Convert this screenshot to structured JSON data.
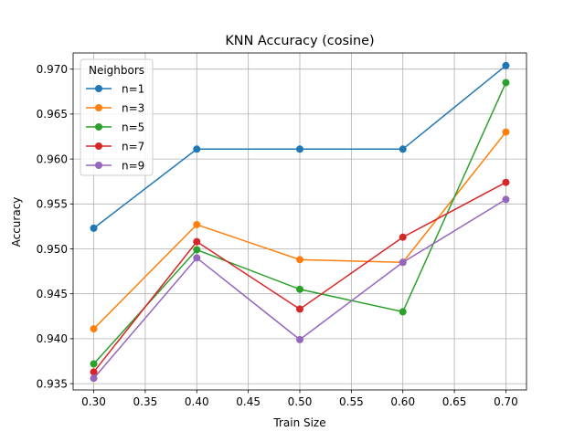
{
  "chart_data": {
    "type": "line",
    "title": "KNN Accuracy (cosine)",
    "xlabel": "Train Size",
    "ylabel": "Accuracy",
    "x": [
      0.3,
      0.4,
      0.5,
      0.6,
      0.7
    ],
    "xlim": [
      0.28,
      0.72
    ],
    "ylim": [
      0.9343,
      0.9718
    ],
    "xticks": [
      0.3,
      0.35,
      0.4,
      0.45,
      0.5,
      0.55,
      0.6,
      0.65,
      0.7
    ],
    "xtick_labels": [
      "0.30",
      "0.35",
      "0.40",
      "0.45",
      "0.50",
      "0.55",
      "0.60",
      "0.65",
      "0.70"
    ],
    "yticks": [
      0.935,
      0.94,
      0.945,
      0.95,
      0.955,
      0.96,
      0.965,
      0.97
    ],
    "ytick_labels": [
      "0.935",
      "0.940",
      "0.945",
      "0.950",
      "0.955",
      "0.960",
      "0.965",
      "0.970"
    ],
    "grid": true,
    "legend": {
      "title": "Neighbors",
      "position": "top-left"
    },
    "series": [
      {
        "name": "n=1",
        "color": "#1f77b4",
        "values": [
          0.9523,
          0.9611,
          0.9611,
          0.9611,
          0.9704
        ]
      },
      {
        "name": "n=3",
        "color": "#ff7f0e",
        "values": [
          0.9411,
          0.9527,
          0.9488,
          0.9485,
          0.963
        ]
      },
      {
        "name": "n=5",
        "color": "#2ca02c",
        "values": [
          0.9372,
          0.9499,
          0.9455,
          0.943,
          0.9685
        ]
      },
      {
        "name": "n=7",
        "color": "#d62728",
        "values": [
          0.9363,
          0.9508,
          0.9433,
          0.9513,
          0.9574
        ]
      },
      {
        "name": "n=9",
        "color": "#9467bd",
        "values": [
          0.9356,
          0.949,
          0.9399,
          0.9485,
          0.9555
        ]
      }
    ]
  }
}
